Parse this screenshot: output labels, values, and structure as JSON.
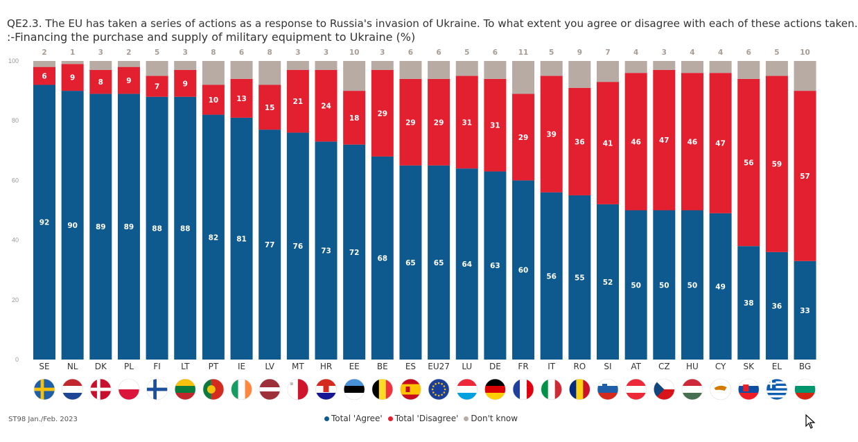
{
  "title": {
    "line1": "QE2.3. The EU has taken a series of actions as a response to Russia's invasion of Ukraine. To what extent you agree or disagree with each of these actions taken.",
    "line2": ":-Financing the purchase and supply of military equipment to Ukraine (%)"
  },
  "source": "ST98 Jan./Feb. 2023",
  "colors": {
    "agree": "#0e5a8f",
    "disagree": "#e3202f",
    "dontknow": "#b7aba4"
  },
  "legend": [
    {
      "label": "Total 'Agree'",
      "color": "#0e5a8f"
    },
    {
      "label": "Total 'Disagree'",
      "color": "#e3202f"
    },
    {
      "label": "Don't know",
      "color": "#b7aba4"
    }
  ],
  "chart_data": {
    "type": "bar",
    "stacked": true,
    "ylim": [
      0,
      100
    ],
    "yticks": [
      "0",
      "20",
      "40",
      "60",
      "80",
      "100"
    ],
    "categories": [
      "SE",
      "NL",
      "DK",
      "PL",
      "FI",
      "LT",
      "PT",
      "IE",
      "LV",
      "MT",
      "HR",
      "EE",
      "BE",
      "ES",
      "EU27",
      "LU",
      "DE",
      "FR",
      "IT",
      "RO",
      "SI",
      "AT",
      "CZ",
      "HU",
      "CY",
      "SK",
      "EL",
      "BG"
    ],
    "series": [
      {
        "name": "Total 'Agree'",
        "values": [
          92,
          90,
          89,
          89,
          88,
          88,
          82,
          81,
          77,
          76,
          73,
          72,
          68,
          65,
          65,
          64,
          63,
          60,
          56,
          55,
          52,
          50,
          50,
          50,
          49,
          38,
          36,
          33
        ]
      },
      {
        "name": "Total 'Disagree'",
        "values": [
          6,
          9,
          8,
          9,
          7,
          9,
          10,
          13,
          15,
          21,
          24,
          18,
          29,
          29,
          29,
          31,
          31,
          29,
          39,
          36,
          41,
          46,
          47,
          46,
          47,
          56,
          59,
          57
        ]
      },
      {
        "name": "Don't know",
        "values": [
          2,
          1,
          3,
          2,
          5,
          3,
          8,
          6,
          8,
          3,
          3,
          10,
          3,
          6,
          6,
          5,
          6,
          11,
          5,
          9,
          7,
          4,
          3,
          4,
          4,
          6,
          5,
          10
        ]
      }
    ]
  }
}
